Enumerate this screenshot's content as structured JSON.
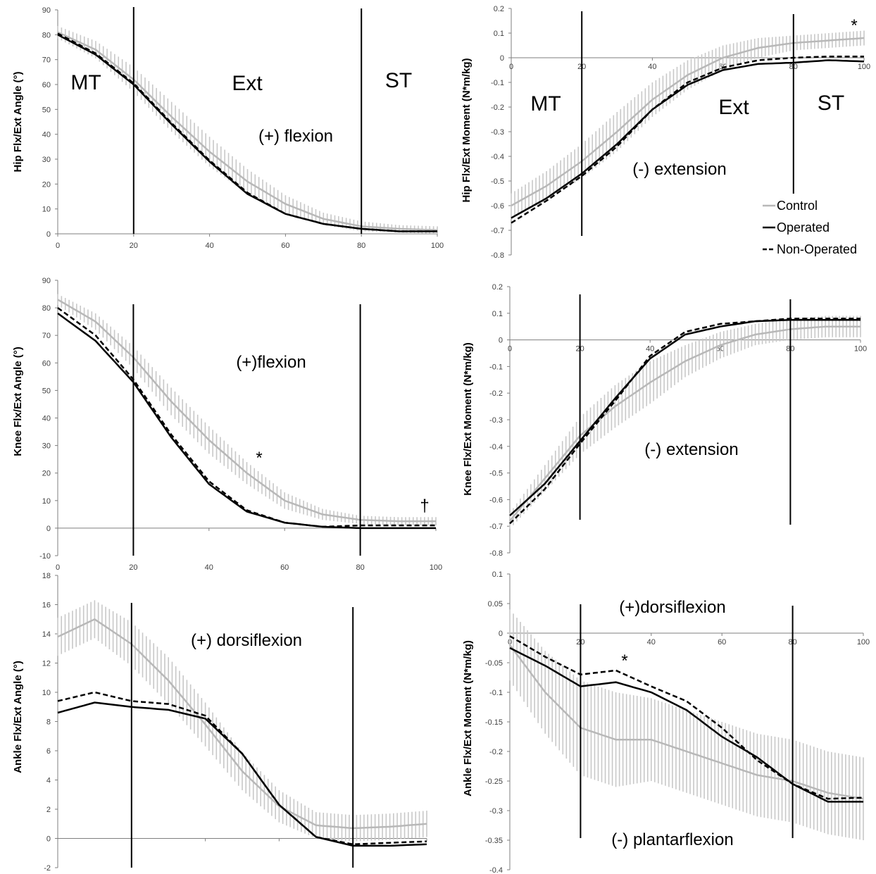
{
  "colors": {
    "control": "#b8b8b8",
    "control_band": "#c8c8c8",
    "operated": "#000000",
    "non_operated": "#000000",
    "axis": "#7f7f7f"
  },
  "legend": {
    "control": "Control",
    "operated": "Operated",
    "non_operated": "Non-Operated"
  },
  "chart_data": [
    {
      "id": "hip-angle",
      "type": "line",
      "ylabel": "Hip Flx/Ext Angle (°)",
      "xlim": [
        0,
        100
      ],
      "ylim": [
        0,
        90
      ],
      "xticks": [
        "0",
        "20",
        "40",
        "60",
        "80",
        "100"
      ],
      "yticks": [
        "0",
        "10",
        "20",
        "30",
        "40",
        "50",
        "60",
        "70",
        "80",
        "90"
      ],
      "phase_lines": [
        20,
        80
      ],
      "labels": {
        "mt": "MT",
        "ext": "Ext",
        "st": "ST",
        "direction": "(+) flexion"
      },
      "annotations": [],
      "series": [
        {
          "name": "Control",
          "style": "gray-sd",
          "x": [
            0,
            10,
            20,
            30,
            40,
            50,
            60,
            70,
            80,
            90,
            100
          ],
          "values": [
            81,
            74,
            62,
            47,
            33,
            21,
            12,
            6,
            3,
            2,
            1.5
          ],
          "sd": [
            2.5,
            3.5,
            5,
            6,
            6,
            5,
            3.5,
            2.5,
            2,
            1.5,
            1.5
          ]
        },
        {
          "name": "Operated",
          "style": "solid",
          "x": [
            0,
            10,
            20,
            30,
            40,
            50,
            60,
            70,
            80,
            90,
            100
          ],
          "values": [
            80,
            72,
            60,
            44,
            29,
            16,
            8,
            4,
            2,
            1,
            1
          ]
        },
        {
          "name": "Non-Operated",
          "style": "dashed",
          "x": [
            0,
            10,
            20,
            30,
            40,
            50,
            60,
            70,
            80,
            90,
            100
          ],
          "values": [
            80.5,
            72.5,
            60.5,
            44.5,
            29.5,
            16.5,
            8,
            4,
            2,
            1,
            1
          ]
        }
      ]
    },
    {
      "id": "hip-moment",
      "type": "line",
      "ylabel": "Hip Flx/Ext Moment (N*m/kg)",
      "xlim": [
        0,
        100
      ],
      "ylim": [
        -0.8,
        0.2
      ],
      "xticks": [
        "0",
        "20",
        "40",
        "60",
        "80",
        "100"
      ],
      "yticks": [
        "-0.8",
        "-0.7",
        "-0.6",
        "-0.5",
        "-0.4",
        "-0.3",
        "-0.2",
        "-0.1",
        "0",
        "0.1",
        "0.2"
      ],
      "phase_lines": [
        20,
        80
      ],
      "labels": {
        "mt": "MT",
        "ext": "Ext",
        "st": "ST",
        "direction": "(-) extension"
      },
      "annotations": [
        "*"
      ],
      "series": [
        {
          "name": "Control",
          "style": "gray-sd",
          "x": [
            0,
            10,
            20,
            30,
            40,
            50,
            60,
            70,
            80,
            90,
            100
          ],
          "values": [
            -0.6,
            -0.52,
            -0.42,
            -0.3,
            -0.17,
            -0.07,
            0.0,
            0.04,
            0.06,
            0.07,
            0.08
          ],
          "sd": [
            0.05,
            0.06,
            0.07,
            0.08,
            0.07,
            0.06,
            0.05,
            0.04,
            0.03,
            0.03,
            0.03
          ]
        },
        {
          "name": "Operated",
          "style": "solid",
          "x": [
            0,
            10,
            20,
            30,
            40,
            50,
            60,
            70,
            80,
            90,
            100
          ],
          "values": [
            -0.65,
            -0.57,
            -0.47,
            -0.35,
            -0.21,
            -0.11,
            -0.05,
            -0.025,
            -0.02,
            -0.01,
            -0.015
          ]
        },
        {
          "name": "Non-Operated",
          "style": "dashed",
          "x": [
            0,
            10,
            20,
            30,
            40,
            50,
            60,
            70,
            80,
            90,
            100
          ],
          "values": [
            -0.67,
            -0.58,
            -0.48,
            -0.36,
            -0.21,
            -0.1,
            -0.04,
            -0.01,
            0.0,
            0.005,
            0.005
          ]
        }
      ]
    },
    {
      "id": "knee-angle",
      "type": "line",
      "ylabel": "Knee Flx/Ext Angle (°)",
      "xlim": [
        0,
        100
      ],
      "ylim": [
        -10,
        90
      ],
      "xticks": [
        "0",
        "20",
        "40",
        "60",
        "80",
        "100"
      ],
      "yticks": [
        "-10",
        "0",
        "10",
        "20",
        "30",
        "40",
        "50",
        "60",
        "70",
        "80",
        "90"
      ],
      "phase_lines": [
        20,
        80
      ],
      "labels": {
        "direction": "(+)flexion"
      },
      "annotations": [
        "*",
        "†"
      ],
      "series": [
        {
          "name": "Control",
          "style": "gray-sd",
          "x": [
            0,
            10,
            20,
            30,
            40,
            50,
            60,
            70,
            80,
            90,
            100
          ],
          "values": [
            83,
            75,
            62,
            46,
            32,
            20,
            10,
            5,
            3,
            2.5,
            2.5
          ],
          "sd": [
            2,
            3,
            4,
            5,
            5,
            4,
            3,
            2,
            1.5,
            1.5,
            1.5
          ]
        },
        {
          "name": "Operated",
          "style": "solid",
          "x": [
            0,
            10,
            20,
            30,
            40,
            50,
            60,
            70,
            80,
            90,
            100
          ],
          "values": [
            78,
            68,
            53,
            33,
            16,
            6,
            2,
            0.5,
            0,
            0,
            0
          ]
        },
        {
          "name": "Non-Operated",
          "style": "dashed",
          "x": [
            0,
            10,
            20,
            30,
            40,
            50,
            60,
            70,
            80,
            90,
            100
          ],
          "values": [
            80,
            70,
            54,
            34,
            17,
            6.5,
            2,
            0.5,
            1,
            1,
            1
          ]
        }
      ]
    },
    {
      "id": "knee-moment",
      "type": "line",
      "ylabel": "Knee Flx/Ext Moment (N*m/kg)",
      "xlim": [
        0,
        100
      ],
      "ylim": [
        -0.8,
        0.2
      ],
      "xticks": [
        "0",
        "20",
        "40",
        "60",
        "80",
        "100"
      ],
      "yticks": [
        "-0.8",
        "-0.7",
        "-0.6",
        "-0.5",
        "-0.4",
        "-0.3",
        "-0.2",
        "-0.1",
        "0",
        "0.1",
        "0.2"
      ],
      "phase_lines": [
        20,
        80
      ],
      "labels": {
        "direction": "(-) extension"
      },
      "annotations": [],
      "series": [
        {
          "name": "Control",
          "style": "gray-sd",
          "x": [
            0,
            10,
            20,
            30,
            40,
            50,
            60,
            70,
            80,
            90,
            100
          ],
          "values": [
            -0.68,
            -0.52,
            -0.36,
            -0.25,
            -0.16,
            -0.08,
            -0.02,
            0.02,
            0.04,
            0.05,
            0.05
          ],
          "sd": [
            0.03,
            0.05,
            0.07,
            0.08,
            0.08,
            0.06,
            0.05,
            0.04,
            0.04,
            0.04,
            0.04
          ]
        },
        {
          "name": "Operated",
          "style": "solid",
          "x": [
            0,
            10,
            20,
            30,
            40,
            50,
            60,
            70,
            80,
            90,
            100
          ],
          "values": [
            -0.66,
            -0.54,
            -0.38,
            -0.22,
            -0.07,
            0.02,
            0.05,
            0.07,
            0.075,
            0.075,
            0.075
          ]
        },
        {
          "name": "Non-Operated",
          "style": "dashed",
          "x": [
            0,
            10,
            20,
            30,
            40,
            50,
            60,
            70,
            80,
            90,
            100
          ],
          "values": [
            -0.69,
            -0.56,
            -0.39,
            -0.23,
            -0.06,
            0.03,
            0.06,
            0.07,
            0.08,
            0.08,
            0.08
          ]
        }
      ]
    },
    {
      "id": "ankle-angle",
      "type": "line",
      "ylabel": "Ankle Flx/Ext Angle (°)",
      "xlim": [
        0,
        100
      ],
      "ylim": [
        -2,
        18
      ],
      "xticks": [
        "0",
        "20",
        "40",
        "60",
        "80",
        "100"
      ],
      "yticks": [
        "-2",
        "0",
        "2",
        "4",
        "6",
        "8",
        "10",
        "12",
        "14",
        "16",
        "18"
      ],
      "phase_lines": [
        20,
        80
      ],
      "labels": {
        "direction": "(+) dorsiflexion"
      },
      "annotations": [],
      "series": [
        {
          "name": "Control",
          "style": "gray-sd",
          "x": [
            0,
            10,
            20,
            30,
            40,
            50,
            60,
            70,
            80,
            90,
            100
          ],
          "values": [
            13.8,
            15,
            13.3,
            10.8,
            7.8,
            4.6,
            2.2,
            0.9,
            0.7,
            0.8,
            1.0
          ],
          "sd": [
            1.3,
            1.3,
            1.5,
            1.6,
            1.5,
            1.3,
            1.1,
            0.9,
            0.9,
            0.9,
            0.9
          ]
        },
        {
          "name": "Operated",
          "style": "solid",
          "x": [
            0,
            10,
            20,
            30,
            40,
            50,
            60,
            70,
            80,
            90,
            100
          ],
          "values": [
            8.6,
            9.3,
            9.0,
            8.8,
            8.2,
            5.8,
            2.3,
            0.1,
            -0.5,
            -0.5,
            -0.4
          ]
        },
        {
          "name": "Non-Operated",
          "style": "dashed",
          "x": [
            0,
            10,
            20,
            30,
            40,
            50,
            60,
            70,
            80,
            90,
            100
          ],
          "values": [
            9.4,
            10.0,
            9.4,
            9.2,
            8.4,
            5.8,
            2.3,
            0.1,
            -0.4,
            -0.3,
            -0.2
          ]
        }
      ]
    },
    {
      "id": "ankle-moment",
      "type": "line",
      "ylabel": "Ankle Flx/Ext Moment (N*m/kg)",
      "xlim": [
        0,
        100
      ],
      "ylim": [
        -0.4,
        0.1
      ],
      "xticks": [
        "0",
        "20",
        "40",
        "60",
        "80",
        "100"
      ],
      "yticks": [
        "-0.4",
        "-0.35",
        "-0.3",
        "-0.25",
        "-0.2",
        "-0.15",
        "-0.1",
        "-0.05",
        "0",
        "0.05",
        "0.1"
      ],
      "phase_lines": [
        20,
        80
      ],
      "labels": {
        "pos_direction": "(+)dorsiflexion",
        "neg_direction": "(-) plantarflexion"
      },
      "annotations": [
        "*"
      ],
      "series": [
        {
          "name": "Control",
          "style": "gray-sd",
          "x": [
            0,
            10,
            20,
            30,
            40,
            50,
            60,
            70,
            80,
            90,
            100
          ],
          "values": [
            -0.02,
            -0.1,
            -0.16,
            -0.18,
            -0.18,
            -0.2,
            -0.22,
            -0.24,
            -0.25,
            -0.27,
            -0.28
          ],
          "sd": [
            0.06,
            0.07,
            0.08,
            0.08,
            0.07,
            0.07,
            0.07,
            0.07,
            0.07,
            0.07,
            0.07
          ]
        },
        {
          "name": "Operated",
          "style": "solid",
          "x": [
            0,
            10,
            20,
            30,
            40,
            50,
            60,
            70,
            80,
            90,
            100
          ],
          "values": [
            -0.025,
            -0.055,
            -0.09,
            -0.083,
            -0.1,
            -0.13,
            -0.175,
            -0.21,
            -0.255,
            -0.285,
            -0.285
          ]
        },
        {
          "name": "Non-Operated",
          "style": "dashed",
          "x": [
            0,
            10,
            20,
            30,
            40,
            50,
            60,
            70,
            80,
            90,
            100
          ],
          "values": [
            -0.005,
            -0.04,
            -0.07,
            -0.063,
            -0.09,
            -0.115,
            -0.16,
            -0.215,
            -0.255,
            -0.28,
            -0.278
          ]
        }
      ]
    }
  ]
}
